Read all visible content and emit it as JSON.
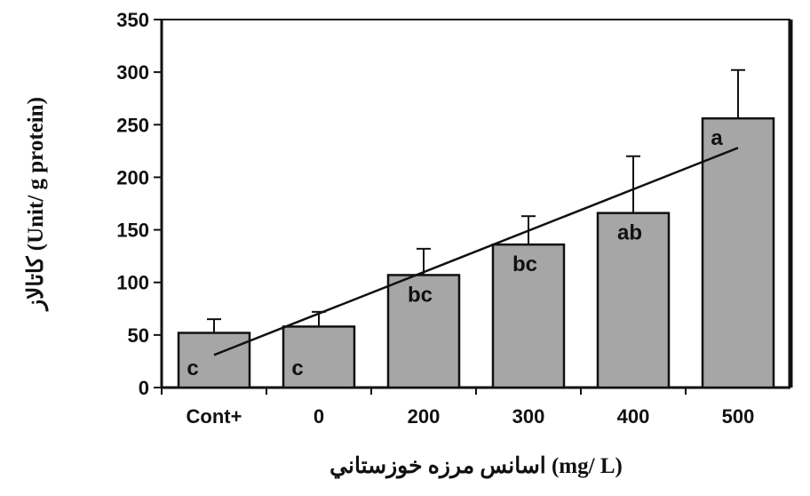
{
  "chart_data": {
    "type": "bar",
    "categories": [
      "Cont+",
      "0",
      "200",
      "300",
      "400",
      "500"
    ],
    "values": [
      52,
      58,
      107,
      136,
      166,
      256
    ],
    "error_upper": [
      65,
      72,
      132,
      163,
      220,
      302
    ],
    "significance_letters": [
      "c",
      "c",
      "bc",
      "bc",
      "ab",
      "a"
    ],
    "trendline": {
      "x_start": "Cont+",
      "y_start": 31,
      "x_end": "500",
      "y_end": 228
    },
    "xlabel": "اسانس مرزه خوزستاني (mg/ L)",
    "ylabel": "كاتالاز (Unit/ g protein)",
    "ylim": [
      0,
      350
    ],
    "yticks": [
      0,
      50,
      100,
      150,
      200,
      250,
      300,
      350
    ],
    "grid": false,
    "bar_color": "#a6a6a6",
    "edge_color": "#111111"
  }
}
